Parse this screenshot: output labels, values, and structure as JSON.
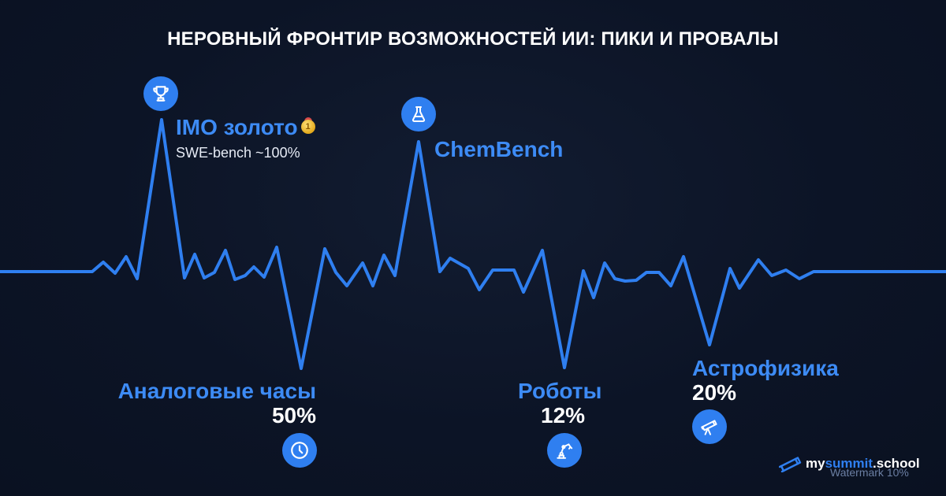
{
  "title": "НЕРОВНЫЙ ФРОНТИР ВОЗМОЖНОСТЕЙ ИИ: ПИКИ И ПРОВАЛЫ",
  "colors": {
    "accent": "#2f7ff0",
    "line": "#2f7ff0",
    "label_blue": "#3d8bf5",
    "background": "#0c1426"
  },
  "peaks": [
    {
      "icon": "trophy-icon",
      "label": "IMO золото",
      "badge": "medal-icon",
      "badge_text": "1",
      "sublabel": "SWE-bench ~100%"
    },
    {
      "icon": "flask-icon",
      "label": "ChemBench"
    }
  ],
  "dips": [
    {
      "icon": "clock-icon",
      "label": "Аналоговые часы",
      "value": "50%"
    },
    {
      "icon": "robot-arm-icon",
      "label": "Роботы",
      "value": "12%"
    },
    {
      "icon": "telescope-icon",
      "label": "Астрофизика",
      "value": "20%"
    }
  ],
  "brand": {
    "icon": "telescope-icon",
    "name_prefix": "my",
    "name_accent": "summit",
    "name_suffix": ".school"
  },
  "watermark": "Watermark 10%"
}
